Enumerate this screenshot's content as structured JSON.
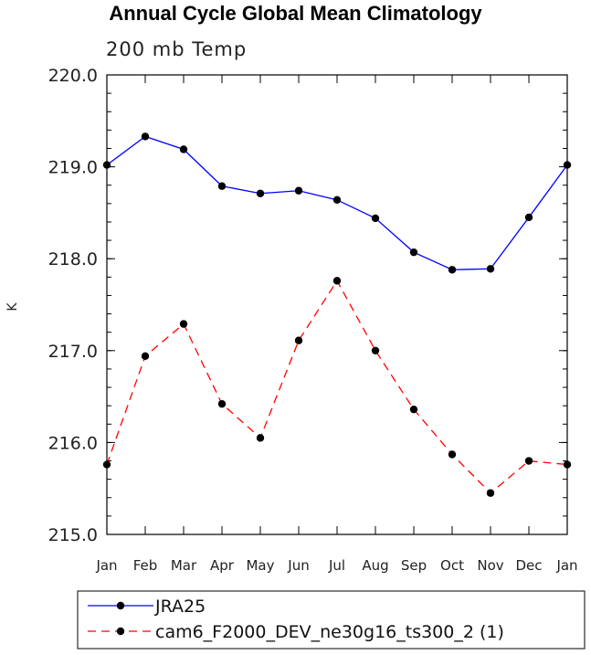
{
  "title": "Annual Cycle Global Mean Climatology",
  "subtitle": "200 mb Temp",
  "chart_data": {
    "type": "line",
    "title": "Annual Cycle Global Mean Climatology",
    "subtitle": "200 mb Temp",
    "xlabel": "",
    "ylabel": "K",
    "categories": [
      "Jan",
      "Feb",
      "Mar",
      "Apr",
      "May",
      "Jun",
      "Jul",
      "Aug",
      "Sep",
      "Oct",
      "Nov",
      "Dec",
      "Jan"
    ],
    "ylim": [
      215.0,
      220.0
    ],
    "yticks": [
      "215.0",
      "216.0",
      "217.0",
      "218.0",
      "219.0",
      "220.0"
    ],
    "grid": false,
    "legend_position": "bottom-left",
    "series": [
      {
        "name": "JRA25",
        "color": "#0000ff",
        "dash": "solid",
        "values": [
          219.02,
          219.33,
          219.19,
          218.79,
          218.71,
          218.74,
          218.64,
          218.44,
          218.07,
          217.88,
          217.89,
          218.45,
          219.02
        ]
      },
      {
        "name": "cam6_F2000_DEV_ne30g16_ts300_2 (1)",
        "color": "#ff0000",
        "dash": "dashed",
        "values": [
          215.76,
          216.94,
          217.29,
          216.42,
          216.05,
          217.11,
          217.76,
          217.0,
          216.36,
          215.87,
          215.45,
          215.8,
          215.76
        ]
      }
    ]
  }
}
